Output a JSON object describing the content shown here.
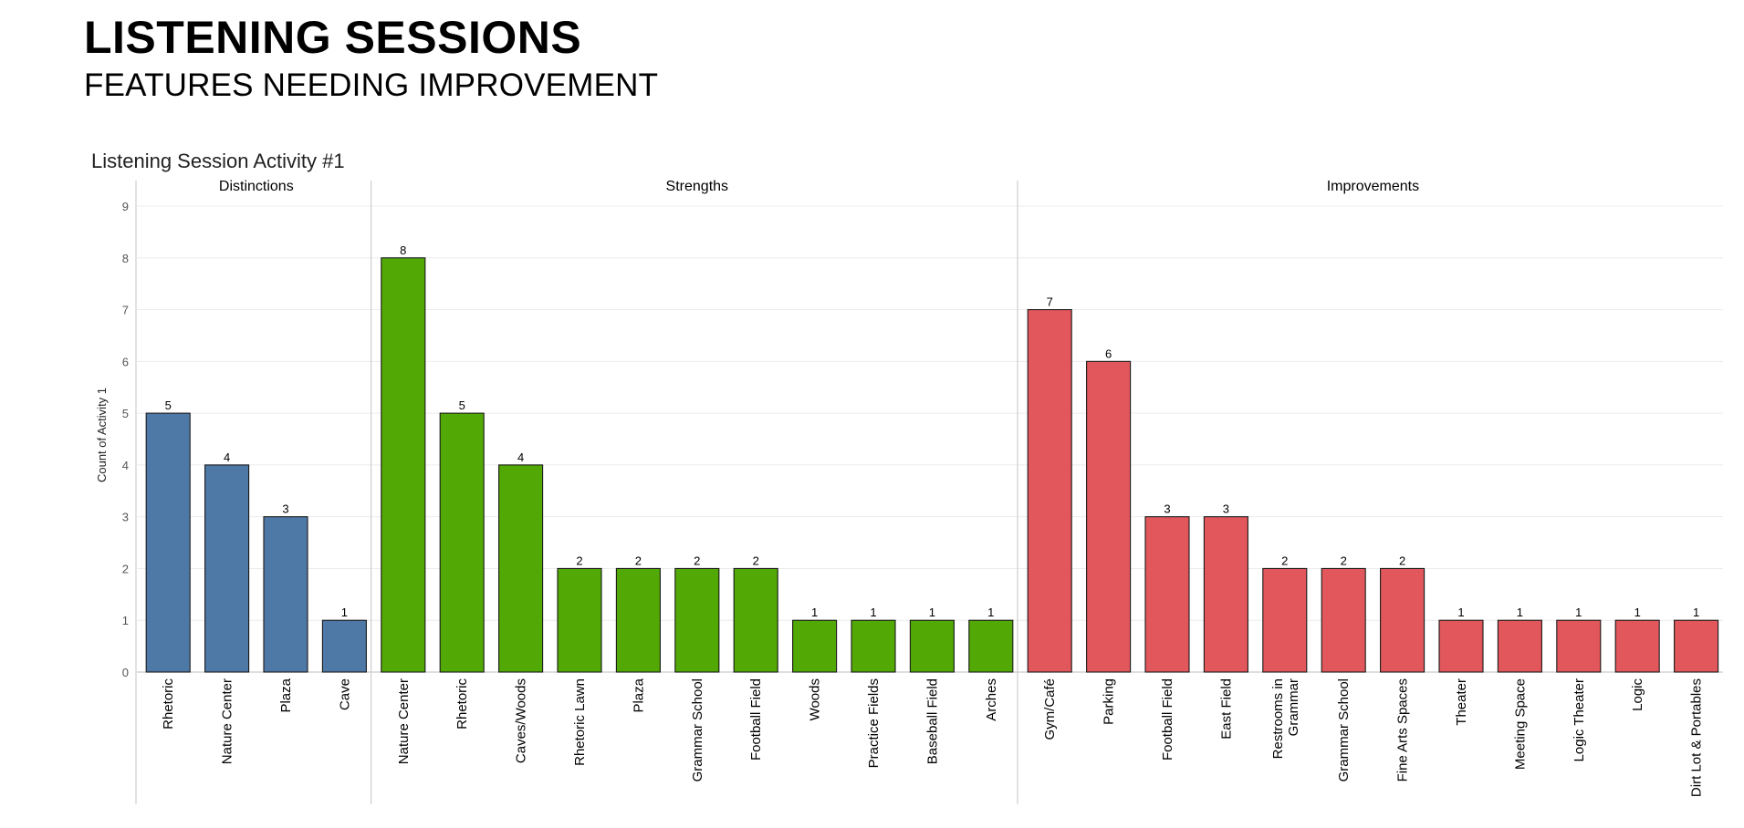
{
  "page": {
    "title": "LISTENING SESSIONS",
    "subtitle": "FEATURES NEEDING IMPROVEMENT"
  },
  "chart_data": {
    "type": "bar",
    "title": "Listening Session Activity #1",
    "ylabel": "Count of Activity 1",
    "ylim": [
      0,
      9
    ],
    "yticks": [
      0,
      1,
      2,
      3,
      4,
      5,
      6,
      7,
      8,
      9
    ],
    "grid": true,
    "data_labels": true,
    "panels": [
      {
        "name": "Distinctions",
        "color": "#4e79a7",
        "categories": [
          "Rhetoric",
          "Nature Center",
          "Plaza",
          "Cave"
        ],
        "values": [
          5,
          4,
          3,
          1
        ]
      },
      {
        "name": "Strengths",
        "color": "#52a804",
        "categories": [
          "Nature Center",
          "Rhetoric",
          "Caves/Woods",
          "Rhetoric Lawn",
          "Plaza",
          "Grammar School",
          "Football Field",
          "Woods",
          "Practice Fields",
          "Baseball Field",
          "Arches"
        ],
        "values": [
          8,
          5,
          4,
          2,
          2,
          2,
          2,
          1,
          1,
          1,
          1
        ]
      },
      {
        "name": "Improvements",
        "color": "#e1575b",
        "categories": [
          "Gym/Café",
          "Parking",
          "Football Field",
          "East Field",
          "Restrooms in Grammar",
          "Grammar School",
          "Fine Arts Spaces",
          "Theater",
          "Meeting Space",
          "Logic Theater",
          "Logic",
          "Dirt Lot & Portables"
        ],
        "values": [
          7,
          6,
          3,
          3,
          2,
          2,
          2,
          1,
          1,
          1,
          1,
          1
        ]
      }
    ]
  }
}
